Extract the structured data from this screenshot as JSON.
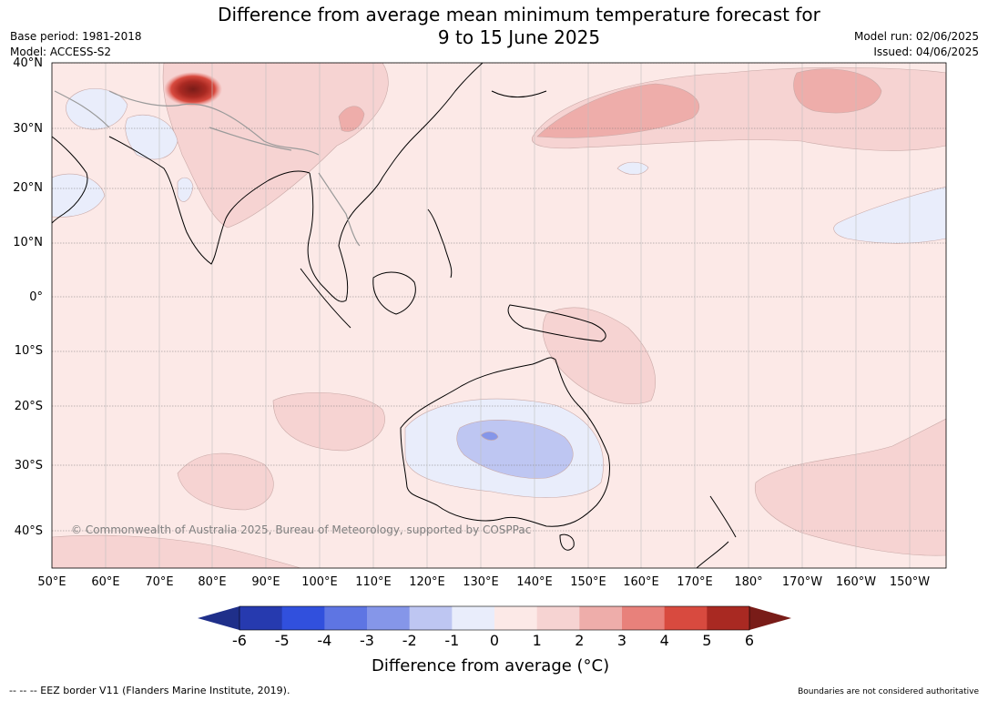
{
  "title": "Difference from average mean minimum temperature forecast for\n9 to 15 June 2025",
  "meta_left": [
    "Base period: 1981-2018",
    "Model: ACCESS-S2"
  ],
  "meta_right": [
    "Model run: 02/06/2025",
    "Issued: 04/06/2025"
  ],
  "lat_ticks": [
    "40°N",
    "30°N",
    "20°N",
    "10°N",
    "0°",
    "10°S",
    "20°S",
    "30°S",
    "40°S"
  ],
  "lon_ticks": [
    "50°E",
    "60°E",
    "70°E",
    "80°E",
    "90°E",
    "100°E",
    "110°E",
    "120°E",
    "130°E",
    "140°E",
    "150°E",
    "160°E",
    "170°E",
    "180°",
    "170°W",
    "160°W",
    "150°W"
  ],
  "colorbar": {
    "ticks": [
      "-6",
      "-5",
      "-4",
      "-3",
      "-2",
      "-1",
      "0",
      "1",
      "2",
      "3",
      "4",
      "5",
      "6"
    ],
    "label": "Difference from average (°C)",
    "colors": [
      "#1f2f8a",
      "#263aaf",
      "#3150dd",
      "#5e75e3",
      "#8596e9",
      "#bec6f2",
      "#e9edfb",
      "#fce9e7",
      "#f6d3d2",
      "#eeadaa",
      "#e8817b",
      "#d84a3f",
      "#a92922",
      "#791c18"
    ]
  },
  "copyright": "© Commonwealth of Australia 2025, Bureau of Meteorology, supported by COSPPac",
  "footer_left": "-- -- -- EEZ border V11 (Flanders Marine Institute, 2019).",
  "footer_right": "Boundaries are not considered authoritative"
}
